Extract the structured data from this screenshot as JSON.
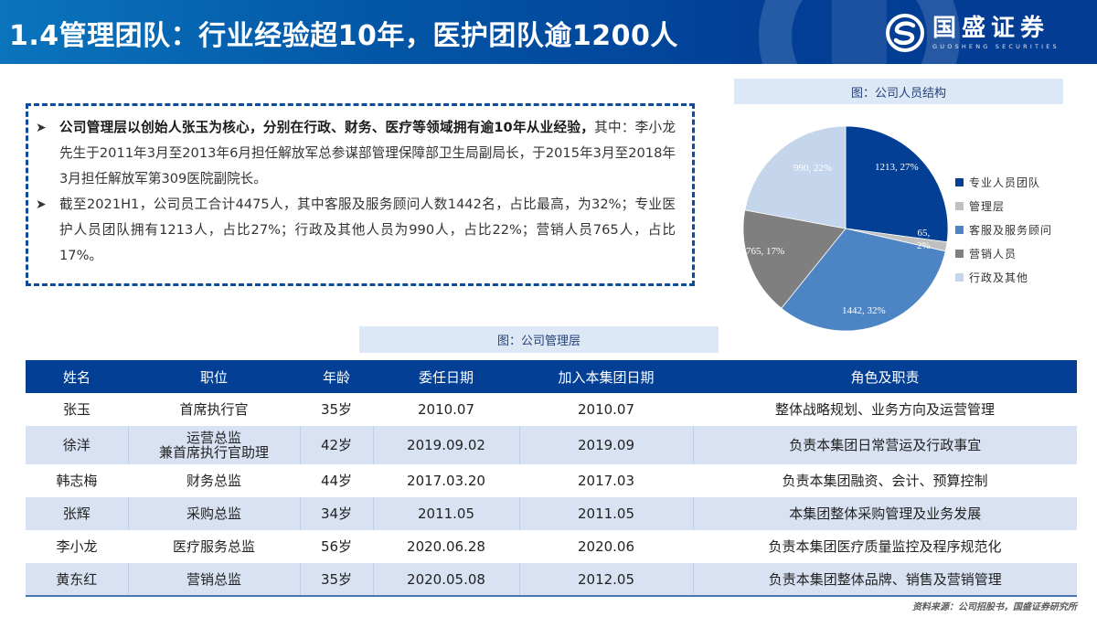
{
  "header": {
    "title": "1.4管理团队：行业经验超10年，医护团队逾1200人",
    "logo": {
      "name_cn": "国盛证券",
      "name_en": "GUOSHENG SECURITIES",
      "icon": "guosheng-logo-icon"
    }
  },
  "summary": {
    "bullet_icon": "arrow-bullet-icon",
    "bullets": [
      {
        "bold": "公司管理层以创始人张玉为核心，分别在行政、财务、医疗等领域拥有逾10年从业经验，",
        "text": "其中：李小龙先生于2011年3月至2013年6月担任解放军总参谋部管理保障部卫生局副局长，于2015年3月至2018年3月担任解放军第309医院副院长。"
      },
      {
        "bold": "",
        "text": "截至2021H1，公司员工合计4475人，其中客服及服务顾问人数1442名，占比最高，为32%；专业医护人员团队拥有1213人，占比27%；行政及其他人员为990人，占比22%；营销人员765人，占比17%。"
      }
    ]
  },
  "chart_caption": "图：公司人员结构",
  "chart_data": {
    "type": "pie",
    "title": "图：公司人员结构",
    "legend_position": "right",
    "categories": [
      "专业人员团队",
      "管理层",
      "客服及服务顾问",
      "营销人员",
      "行政及其他"
    ],
    "values": [
      1213,
      65,
      1442,
      765,
      990
    ],
    "percentages": [
      27,
      2,
      32,
      17,
      22
    ],
    "labels": [
      "1213, 27%",
      "65, 2%",
      "1442, 32%",
      "765, 17%",
      "990, 22%"
    ],
    "colors": [
      "#033f94",
      "#c0c0c0",
      "#4d84c4",
      "#7f7f7f",
      "#c5d6ec"
    ]
  },
  "table_caption": "图：公司管理层",
  "management_table": {
    "columns": [
      "姓名",
      "职位",
      "年龄",
      "委任日期",
      "加入本集团日期",
      "角色及职责"
    ],
    "rows": [
      {
        "name": "张玉",
        "position": "首席执行官",
        "position_line2": "",
        "age": "35岁",
        "appointed": "2010.07",
        "joined": "2010.07",
        "role": "整体战略规划、业务方向及运营管理"
      },
      {
        "name": "徐洋",
        "position": "运营总监",
        "position_line2": "兼首席执行官助理",
        "age": "42岁",
        "appointed": "2019.09.02",
        "joined": "2019.09",
        "role": "负责本集团日常营运及行政事宜"
      },
      {
        "name": "韩志梅",
        "position": "财务总监",
        "position_line2": "",
        "age": "44岁",
        "appointed": "2017.03.20",
        "joined": "2017.03",
        "role": "负责本集团融资、会计、预算控制"
      },
      {
        "name": "张辉",
        "position": "采购总监",
        "position_line2": "",
        "age": "34岁",
        "appointed": "2011.05",
        "joined": "2011.05",
        "role": "本集团整体采购管理及业务发展"
      },
      {
        "name": "李小龙",
        "position": "医疗服务总监",
        "position_line2": "",
        "age": "56岁",
        "appointed": "2020.06.28",
        "joined": "2020.06",
        "role": "负责本集团医疗质量监控及程序规范化"
      },
      {
        "name": "黄东红",
        "position": "营销总监",
        "position_line2": "",
        "age": "35岁",
        "appointed": "2020.05.08",
        "joined": "2012.05",
        "role": "负责本集团整体品牌、销售及营销管理"
      }
    ]
  },
  "source": "资料来源：公司招股书，国盛证券研究所"
}
